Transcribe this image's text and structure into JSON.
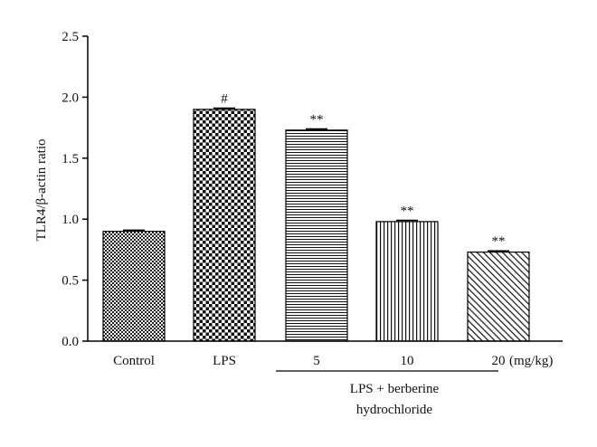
{
  "chart_data": {
    "type": "bar",
    "ylabel": "TLR4/β-actin ratio",
    "ylim": [
      0,
      2.5
    ],
    "yticks": [
      "0.0",
      "0.5",
      "1.0",
      "1.5",
      "2.0",
      "2.5"
    ],
    "categories": [
      "Control",
      "LPS",
      "5",
      "10",
      "20"
    ],
    "values": [
      0.9,
      1.9,
      1.73,
      0.98,
      0.73
    ],
    "errors": [
      0.01,
      0.01,
      0.01,
      0.01,
      0.01
    ],
    "significance": [
      "",
      "#",
      "**",
      "**",
      "**"
    ],
    "patterns": [
      "dots",
      "checker",
      "horizontal",
      "vertical",
      "diagonal"
    ],
    "unit_label": "(mg/kg)",
    "group_label": [
      "LPS + berberine",
      "hydrochloride"
    ],
    "bar_color": "#000000",
    "background": "#ffffff",
    "grid": false
  }
}
